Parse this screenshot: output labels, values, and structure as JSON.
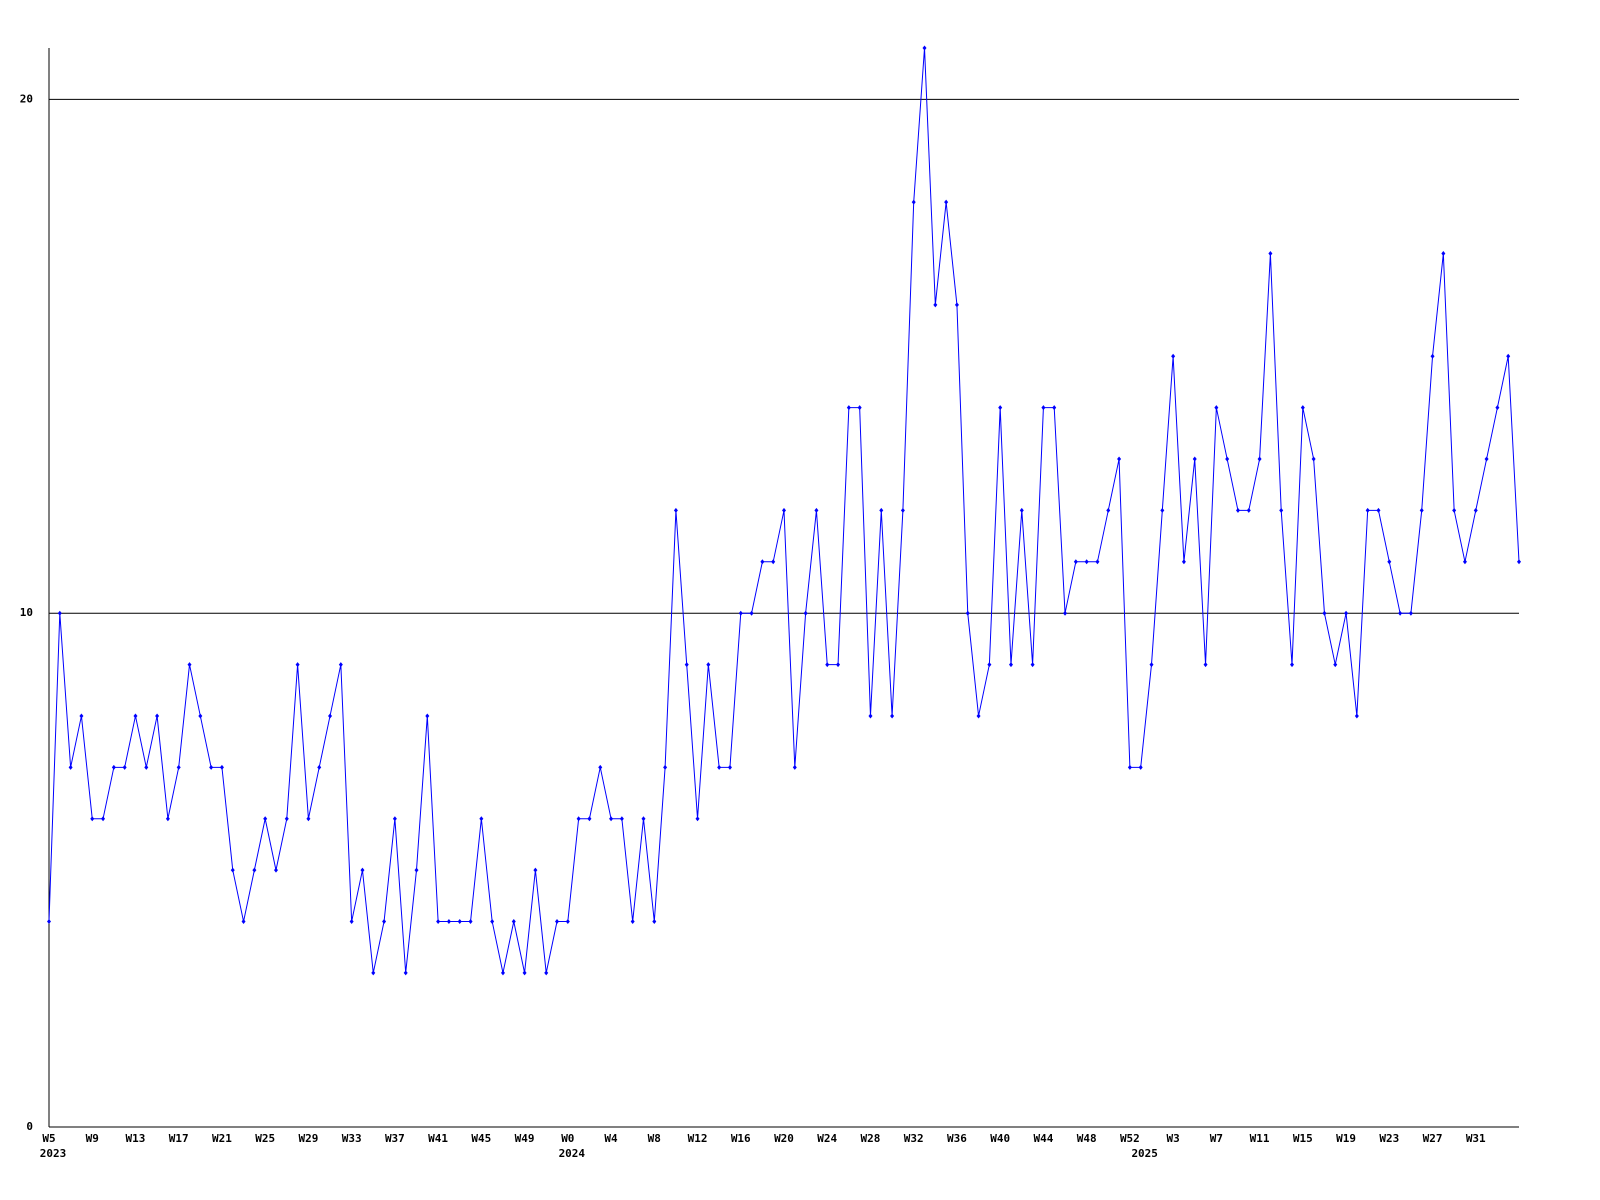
{
  "chart_data": {
    "type": "line",
    "categories": [
      "W5",
      null,
      null,
      null,
      "W9",
      null,
      null,
      null,
      "W13",
      null,
      null,
      null,
      "W17",
      null,
      null,
      null,
      "W21",
      null,
      null,
      null,
      "W25",
      null,
      null,
      null,
      "W29",
      null,
      null,
      null,
      "W33",
      null,
      null,
      null,
      "W37",
      null,
      null,
      null,
      "W41",
      null,
      null,
      null,
      "W45",
      null,
      null,
      null,
      "W49",
      null,
      null,
      null,
      "W0",
      null,
      null,
      null,
      "W4",
      null,
      null,
      null,
      "W8",
      null,
      null,
      null,
      "W12",
      null,
      null,
      null,
      "W16",
      null,
      null,
      null,
      "W20",
      null,
      null,
      null,
      "W24",
      null,
      null,
      null,
      "W28",
      null,
      null,
      null,
      "W32",
      null,
      null,
      null,
      "W36",
      null,
      null,
      null,
      "W40",
      null,
      null,
      null,
      "W44",
      null,
      null,
      null,
      "W48",
      null,
      null,
      null,
      "W52",
      null,
      null,
      null,
      "W3",
      null,
      null,
      null,
      "W7",
      null,
      null,
      null,
      "W11",
      null,
      null,
      null,
      "W15",
      null,
      null,
      null,
      "W19",
      null,
      null,
      null,
      "W23",
      null,
      null,
      null,
      "W27",
      null,
      null,
      null,
      "W31",
      null,
      null,
      null,
      null
    ],
    "year_labels": [
      "2023",
      null,
      null,
      null,
      null,
      null,
      null,
      null,
      null,
      null,
      null,
      null,
      null,
      null,
      null,
      null,
      null,
      null,
      null,
      null,
      null,
      null,
      null,
      null,
      null,
      null,
      null,
      null,
      null,
      null,
      null,
      null,
      null,
      null,
      null,
      null,
      null,
      null,
      null,
      null,
      null,
      null,
      null,
      null,
      null,
      null,
      null,
      null,
      "2024",
      null,
      null,
      null,
      null,
      null,
      null,
      null,
      null,
      null,
      null,
      null,
      null,
      null,
      null,
      null,
      null,
      null,
      null,
      null,
      null,
      null,
      null,
      null,
      null,
      null,
      null,
      null,
      null,
      null,
      null,
      null,
      null,
      null,
      null,
      null,
      null,
      null,
      null,
      null,
      null,
      null,
      null,
      null,
      null,
      null,
      null,
      null,
      null,
      null,
      null,
      null,
      null,
      "2025",
      null,
      null,
      null,
      null,
      null,
      null,
      null,
      null,
      null,
      null,
      null,
      null,
      null,
      null,
      null,
      null,
      null,
      null,
      null,
      null,
      null,
      null,
      null,
      null,
      null,
      null,
      null,
      null,
      null,
      null,
      null,
      null,
      null,
      null,
      null
    ],
    "series": [
      {
        "color": "#0000ff",
        "values": [
          4,
          10,
          7,
          8,
          6,
          6,
          7,
          7,
          8,
          7,
          8,
          6,
          7,
          9,
          8,
          7,
          7,
          5,
          4,
          5,
          6,
          5,
          6,
          9,
          6,
          7,
          8,
          9,
          4,
          5,
          3,
          4,
          6,
          3,
          5,
          8,
          4,
          4,
          4,
          4,
          6,
          4,
          3,
          4,
          3,
          5,
          3,
          4,
          4,
          6,
          6,
          7,
          6,
          6,
          4,
          6,
          4,
          7,
          12,
          9,
          6,
          9,
          7,
          7,
          10,
          10,
          11,
          11,
          12,
          7,
          10,
          12,
          9,
          9,
          14,
          14,
          8,
          12,
          8,
          12,
          18,
          21,
          16,
          18,
          16,
          10,
          8,
          9,
          14,
          9,
          12,
          9,
          14,
          14,
          10,
          11,
          11,
          11,
          12,
          13,
          7,
          7,
          9,
          12,
          15,
          11,
          13,
          9,
          14,
          13,
          12,
          12,
          13,
          17,
          12,
          9,
          14,
          13,
          10,
          9,
          10,
          8,
          12,
          12,
          11,
          10,
          10,
          12,
          15,
          17,
          12,
          11,
          12,
          13,
          14,
          15,
          11
        ]
      }
    ],
    "ylim": [
      0,
      21
    ],
    "yticks": [
      0,
      10,
      20
    ],
    "grid": true
  }
}
